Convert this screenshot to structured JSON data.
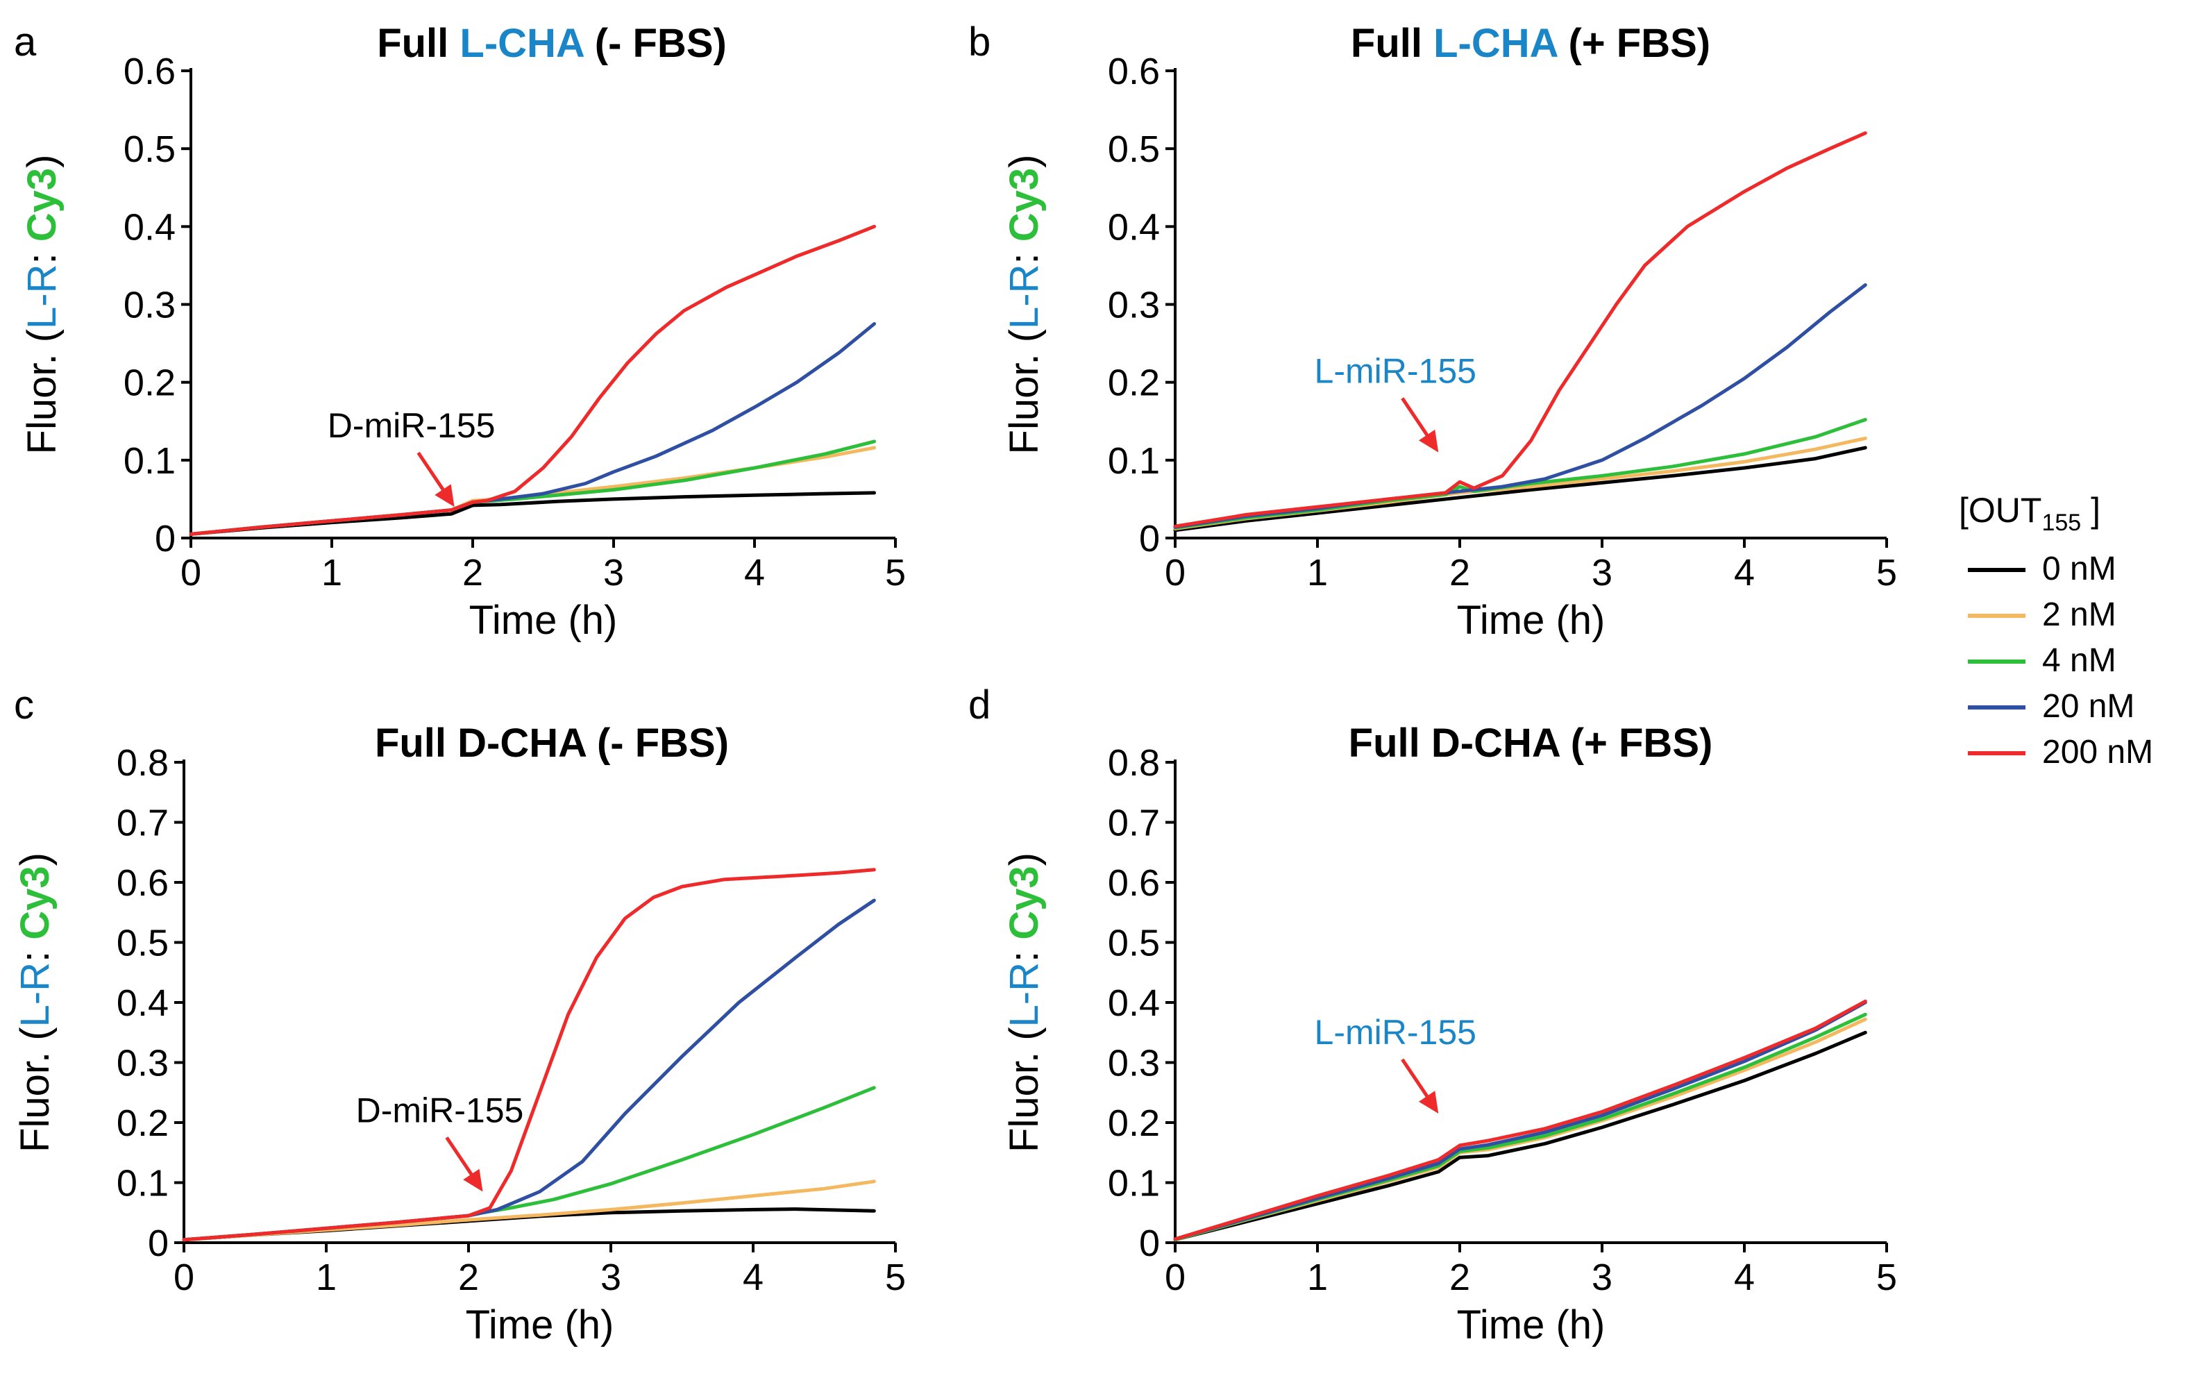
{
  "legend": {
    "title_main": "[OUT",
    "title_sub": "155",
    "title_end": " ]",
    "entries": [
      {
        "label": "0 nM",
        "color": "#000000"
      },
      {
        "label": "2 nM",
        "color": "#F4B860"
      },
      {
        "label": "4 nM",
        "color": "#2DBE3A"
      },
      {
        "label": "20 nM",
        "color": "#2F4FA2"
      },
      {
        "label": "200 nM",
        "color": "#EE2A2A"
      }
    ]
  },
  "colors": {
    "lchem": "#1A86C8",
    "cy3": "#2DBE3A",
    "annot_arrow": "#EE2A2A",
    "text": "#000000"
  },
  "chart_data": [
    {
      "panel": "a",
      "type": "line",
      "title_prefix": "Full ",
      "title_chem": "L-CHA",
      "title_chem_colored": true,
      "title_suffix": " (- FBS)",
      "xlabel": "Time (h)",
      "ylabel_prefix": "Fluor. (",
      "ylabel_lr": "L-R",
      "ylabel_colon": ": ",
      "ylabel_cy3": "Cy3",
      "ylabel_suffix": ")",
      "xlim": [
        0,
        5
      ],
      "ylim": [
        0,
        0.6
      ],
      "xticks": [
        "0",
        "1",
        "2",
        "3",
        "4",
        "5"
      ],
      "yticks": [
        "0",
        "0.1",
        "0.2",
        "0.3",
        "0.4",
        "0.5",
        "0.6"
      ],
      "annotation": {
        "text": "D-miR-155",
        "colored": false,
        "at": [
          1.87,
          0.04
        ]
      },
      "series": [
        {
          "name": "0 nM",
          "x": [
            0,
            0.5,
            1,
            1.5,
            1.85,
            2.0,
            2.2,
            2.6,
            3,
            3.5,
            4,
            4.5,
            4.85
          ],
          "y": [
            0.005,
            0.013,
            0.02,
            0.026,
            0.031,
            0.042,
            0.043,
            0.047,
            0.05,
            0.053,
            0.055,
            0.057,
            0.058
          ]
        },
        {
          "name": "2 nM",
          "x": [
            0,
            0.5,
            1,
            1.5,
            1.85,
            2.0,
            2.3,
            2.6,
            3,
            3.5,
            4,
            4.5,
            4.85
          ],
          "y": [
            0.005,
            0.014,
            0.022,
            0.03,
            0.036,
            0.048,
            0.052,
            0.058,
            0.066,
            0.077,
            0.09,
            0.104,
            0.116
          ]
        },
        {
          "name": "4 nM",
          "x": [
            0,
            0.5,
            1,
            1.5,
            1.85,
            2.0,
            2.3,
            2.6,
            3,
            3.5,
            4,
            4.5,
            4.85
          ],
          "y": [
            0.005,
            0.014,
            0.022,
            0.03,
            0.036,
            0.046,
            0.05,
            0.055,
            0.062,
            0.074,
            0.09,
            0.108,
            0.124
          ]
        },
        {
          "name": "20 nM",
          "x": [
            0,
            0.5,
            1,
            1.5,
            1.85,
            2.0,
            2.2,
            2.5,
            2.8,
            3,
            3.3,
            3.7,
            4,
            4.3,
            4.6,
            4.85
          ],
          "y": [
            0.005,
            0.014,
            0.022,
            0.03,
            0.036,
            0.046,
            0.05,
            0.057,
            0.07,
            0.085,
            0.105,
            0.138,
            0.168,
            0.2,
            0.238,
            0.275
          ]
        },
        {
          "name": "200 nM",
          "x": [
            0,
            0.5,
            1,
            1.5,
            1.85,
            2.0,
            2.1,
            2.3,
            2.5,
            2.7,
            2.9,
            3.1,
            3.3,
            3.5,
            3.8,
            4.0,
            4.3,
            4.6,
            4.85
          ],
          "y": [
            0.005,
            0.014,
            0.022,
            0.03,
            0.036,
            0.046,
            0.048,
            0.06,
            0.09,
            0.13,
            0.18,
            0.225,
            0.262,
            0.292,
            0.322,
            0.338,
            0.362,
            0.382,
            0.4
          ]
        }
      ]
    },
    {
      "panel": "b",
      "type": "line",
      "title_prefix": "Full ",
      "title_chem": "L-CHA",
      "title_chem_colored": true,
      "title_suffix": " (+ FBS)",
      "xlabel": "Time (h)",
      "ylabel_prefix": "Fluor. (",
      "ylabel_lr": "L-R",
      "ylabel_colon": ": ",
      "ylabel_cy3": "Cy3",
      "ylabel_suffix": ")",
      "xlim": [
        0,
        5
      ],
      "ylim": [
        0,
        0.6
      ],
      "xticks": [
        "0",
        "1",
        "2",
        "3",
        "4",
        "5"
      ],
      "yticks": [
        "0",
        "0.1",
        "0.2",
        "0.3",
        "0.4",
        "0.5",
        "0.6"
      ],
      "annotation": {
        "text": "L-miR-155",
        "colored": true,
        "at": [
          1.85,
          0.11
        ]
      },
      "series": [
        {
          "name": "0 nM",
          "x": [
            0,
            0.5,
            1,
            1.5,
            2.0,
            2.5,
            3,
            3.5,
            4,
            4.5,
            4.85
          ],
          "y": [
            0.01,
            0.022,
            0.032,
            0.042,
            0.052,
            0.062,
            0.071,
            0.08,
            0.09,
            0.102,
            0.116
          ]
        },
        {
          "name": "2 nM",
          "x": [
            0,
            0.5,
            1,
            1.5,
            2.0,
            2.5,
            3,
            3.5,
            4,
            4.5,
            4.85
          ],
          "y": [
            0.012,
            0.025,
            0.035,
            0.046,
            0.058,
            0.066,
            0.076,
            0.086,
            0.098,
            0.114,
            0.128
          ]
        },
        {
          "name": "4 nM",
          "x": [
            0,
            0.5,
            1,
            1.5,
            1.9,
            2.0,
            2.1,
            2.5,
            3,
            3.5,
            4,
            4.5,
            4.85
          ],
          "y": [
            0.013,
            0.026,
            0.036,
            0.048,
            0.056,
            0.066,
            0.06,
            0.07,
            0.08,
            0.092,
            0.108,
            0.13,
            0.152
          ]
        },
        {
          "name": "20 nM",
          "x": [
            0,
            0.5,
            1,
            1.5,
            2.0,
            2.3,
            2.6,
            3,
            3.3,
            3.7,
            4,
            4.3,
            4.6,
            4.85
          ],
          "y": [
            0.014,
            0.028,
            0.038,
            0.05,
            0.06,
            0.066,
            0.076,
            0.1,
            0.128,
            0.17,
            0.205,
            0.245,
            0.29,
            0.325
          ]
        },
        {
          "name": "200 nM",
          "x": [
            0,
            0.5,
            1,
            1.5,
            1.9,
            2.0,
            2.1,
            2.3,
            2.5,
            2.7,
            2.9,
            3.1,
            3.3,
            3.6,
            4,
            4.3,
            4.6,
            4.85
          ],
          "y": [
            0.015,
            0.03,
            0.04,
            0.05,
            0.058,
            0.072,
            0.064,
            0.08,
            0.125,
            0.19,
            0.245,
            0.3,
            0.35,
            0.4,
            0.445,
            0.475,
            0.5,
            0.52
          ]
        }
      ]
    },
    {
      "panel": "c",
      "type": "line",
      "title_prefix": "Full ",
      "title_chem": "D-CHA",
      "title_chem_colored": false,
      "title_suffix": " (- FBS)",
      "xlabel": "Time (h)",
      "ylabel_prefix": "Fluor. (",
      "ylabel_lr": "L-R",
      "ylabel_colon": ": ",
      "ylabel_cy3": "Cy3",
      "ylabel_suffix": ")",
      "xlim": [
        0,
        5
      ],
      "ylim": [
        0,
        0.8
      ],
      "xticks": [
        "0",
        "1",
        "2",
        "3",
        "4",
        "5"
      ],
      "yticks": [
        "0",
        "0.1",
        "0.2",
        "0.3",
        "0.4",
        "0.5",
        "0.6",
        "0.7",
        "0.8"
      ],
      "annotation": {
        "text": "D-miR-155",
        "colored": false,
        "at": [
          2.1,
          0.085
        ]
      },
      "series": [
        {
          "name": "0 nM",
          "x": [
            0,
            0.5,
            1,
            1.5,
            2.0,
            2.5,
            3,
            3.5,
            4,
            4.3,
            4.85
          ],
          "y": [
            0.005,
            0.013,
            0.02,
            0.028,
            0.036,
            0.044,
            0.05,
            0.053,
            0.055,
            0.056,
            0.053
          ]
        },
        {
          "name": "2 nM",
          "x": [
            0,
            0.5,
            1,
            1.5,
            2.0,
            2.5,
            3,
            3.5,
            4,
            4.5,
            4.85
          ],
          "y": [
            0.005,
            0.013,
            0.021,
            0.029,
            0.038,
            0.046,
            0.055,
            0.066,
            0.078,
            0.09,
            0.102
          ]
        },
        {
          "name": "4 nM",
          "x": [
            0,
            0.5,
            1,
            1.5,
            2.0,
            2.1,
            2.3,
            2.6,
            3,
            3.5,
            4,
            4.5,
            4.85
          ],
          "y": [
            0.005,
            0.014,
            0.024,
            0.034,
            0.045,
            0.05,
            0.058,
            0.072,
            0.098,
            0.138,
            0.18,
            0.225,
            0.258
          ]
        },
        {
          "name": "20 nM",
          "x": [
            0,
            0.5,
            1,
            1.5,
            2.0,
            2.2,
            2.5,
            2.8,
            3.1,
            3.5,
            3.9,
            4.3,
            4.6,
            4.85
          ],
          "y": [
            0.005,
            0.014,
            0.024,
            0.034,
            0.045,
            0.055,
            0.085,
            0.135,
            0.215,
            0.31,
            0.4,
            0.475,
            0.53,
            0.57
          ]
        },
        {
          "name": "200 nM",
          "x": [
            0,
            0.5,
            1,
            1.5,
            2.0,
            2.15,
            2.3,
            2.5,
            2.7,
            2.9,
            3.1,
            3.3,
            3.5,
            3.8,
            4.2,
            4.6,
            4.85
          ],
          "y": [
            0.005,
            0.014,
            0.024,
            0.034,
            0.045,
            0.058,
            0.12,
            0.25,
            0.38,
            0.475,
            0.54,
            0.575,
            0.593,
            0.605,
            0.61,
            0.616,
            0.621
          ]
        }
      ]
    },
    {
      "panel": "d",
      "type": "line",
      "title_prefix": "Full ",
      "title_chem": "D-CHA",
      "title_chem_colored": false,
      "title_suffix": " (+ FBS)",
      "xlabel": "Time (h)",
      "ylabel_prefix": "Fluor. (",
      "ylabel_lr": "L-R",
      "ylabel_colon": ": ",
      "ylabel_cy3": "Cy3",
      "ylabel_suffix": ")",
      "xlim": [
        0,
        5
      ],
      "ylim": [
        0,
        0.8
      ],
      "xticks": [
        "0",
        "1",
        "2",
        "3",
        "4",
        "5"
      ],
      "yticks": [
        "0",
        "0.1",
        "0.2",
        "0.3",
        "0.4",
        "0.5",
        "0.6",
        "0.7",
        "0.8"
      ],
      "annotation": {
        "text": "L-miR-155",
        "colored": true,
        "at": [
          1.85,
          0.215
        ]
      },
      "series": [
        {
          "name": "0 nM",
          "x": [
            0,
            0.5,
            1,
            1.5,
            1.85,
            2.0,
            2.2,
            2.6,
            3,
            3.5,
            4,
            4.5,
            4.85
          ],
          "y": [
            0.005,
            0.035,
            0.065,
            0.095,
            0.118,
            0.142,
            0.145,
            0.165,
            0.192,
            0.23,
            0.27,
            0.315,
            0.35
          ]
        },
        {
          "name": "2 nM",
          "x": [
            0,
            0.5,
            1,
            1.5,
            1.85,
            2.0,
            2.2,
            2.6,
            3,
            3.5,
            4,
            4.5,
            4.85
          ],
          "y": [
            0.005,
            0.038,
            0.07,
            0.102,
            0.125,
            0.15,
            0.155,
            0.175,
            0.203,
            0.243,
            0.287,
            0.334,
            0.372
          ]
        },
        {
          "name": "4 nM",
          "x": [
            0,
            0.5,
            1,
            1.5,
            1.85,
            2.0,
            2.2,
            2.6,
            3,
            3.5,
            4,
            4.5,
            4.85
          ],
          "y": [
            0.005,
            0.039,
            0.072,
            0.104,
            0.128,
            0.152,
            0.158,
            0.178,
            0.206,
            0.248,
            0.292,
            0.342,
            0.38
          ]
        },
        {
          "name": "20 nM",
          "x": [
            0,
            0.5,
            1,
            1.5,
            1.85,
            2.0,
            2.2,
            2.6,
            3,
            3.5,
            4,
            4.5,
            4.85
          ],
          "y": [
            0.006,
            0.04,
            0.074,
            0.107,
            0.132,
            0.156,
            0.163,
            0.184,
            0.212,
            0.256,
            0.302,
            0.354,
            0.4
          ]
        },
        {
          "name": "200 nM",
          "x": [
            0,
            0.5,
            1,
            1.5,
            1.85,
            2.0,
            2.2,
            2.6,
            3,
            3.5,
            4,
            4.5,
            4.85
          ],
          "y": [
            0.006,
            0.042,
            0.078,
            0.112,
            0.138,
            0.162,
            0.17,
            0.19,
            0.218,
            0.262,
            0.308,
            0.357,
            0.402
          ]
        }
      ]
    }
  ]
}
